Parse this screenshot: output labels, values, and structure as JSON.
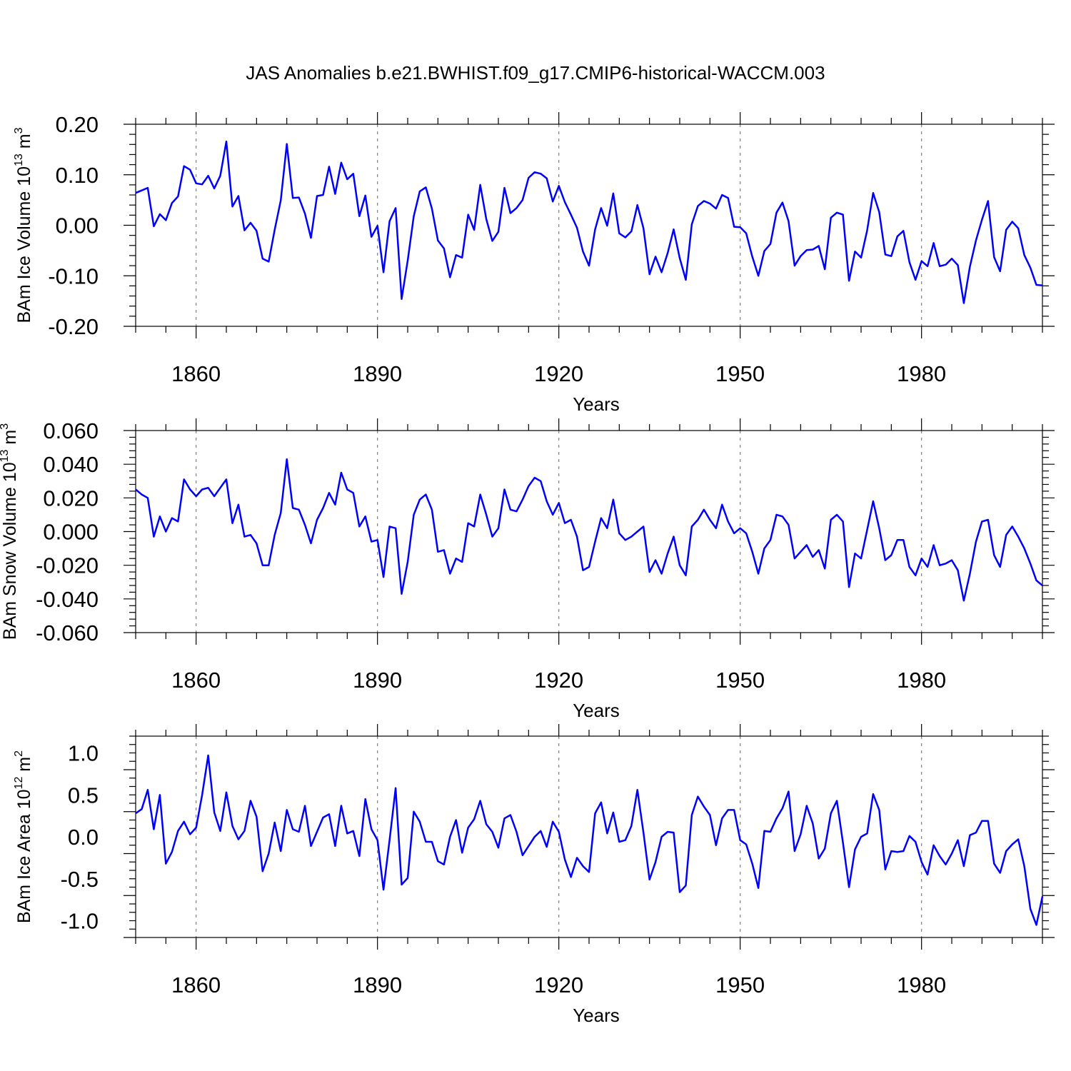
{
  "title": "JAS Anomalies b.e21.BWHIST.f09_g17.CMIP6-historical-WACCM.003",
  "chart_data": [
    {
      "type": "line",
      "xlabel": "Years",
      "ylabel": "BAm Ice Volume 10¹³ m³",
      "ylabel_parts": [
        "BAm Ice Volume 10",
        "13",
        " m",
        "3"
      ],
      "xlim": [
        1850,
        2000
      ],
      "ylim": [
        -0.2,
        0.2
      ],
      "xticks": [
        1860,
        1890,
        1920,
        1950,
        1980
      ],
      "yticks": [
        0.2,
        0.1,
        0.0,
        -0.1,
        -0.2
      ],
      "ytick_labels": [
        "0.20",
        "0.10",
        "0.00",
        "-0.10",
        "-0.20"
      ],
      "grid": "vertical dashed at major x ticks",
      "series": [
        {
          "color": "#0000ff",
          "x_start": 1850,
          "values": [
            0.064,
            0.069,
            0.074,
            -0.002,
            0.022,
            0.01,
            0.044,
            0.057,
            0.117,
            0.11,
            0.083,
            0.081,
            0.098,
            0.073,
            0.098,
            0.166,
            0.037,
            0.058,
            -0.01,
            0.005,
            -0.011,
            -0.066,
            -0.072,
            -0.009,
            0.049,
            0.161,
            0.054,
            0.055,
            0.023,
            -0.025,
            0.058,
            0.06,
            0.116,
            0.062,
            0.124,
            0.091,
            0.102,
            0.018,
            0.059,
            -0.023,
            -0.001,
            -0.093,
            0.008,
            0.034,
            -0.146,
            -0.07,
            0.018,
            0.067,
            0.075,
            0.033,
            -0.03,
            -0.046,
            -0.103,
            -0.059,
            -0.064,
            0.021,
            -0.009,
            0.08,
            0.012,
            -0.031,
            -0.013,
            0.074,
            0.024,
            0.034,
            0.05,
            0.094,
            0.105,
            0.102,
            0.093,
            0.047,
            0.078,
            0.046,
            0.021,
            -0.005,
            -0.052,
            -0.08,
            -0.008,
            0.034,
            -0.001,
            0.063,
            -0.016,
            -0.024,
            -0.012,
            0.04,
            -0.006,
            -0.097,
            -0.062,
            -0.093,
            -0.055,
            -0.008,
            -0.065,
            -0.108,
            0.002,
            0.038,
            0.048,
            0.043,
            0.033,
            0.06,
            0.054,
            -0.003,
            -0.004,
            -0.016,
            -0.062,
            -0.1,
            -0.051,
            -0.037,
            0.025,
            0.045,
            0.008,
            -0.08,
            -0.061,
            -0.049,
            -0.048,
            -0.041,
            -0.087,
            0.015,
            0.025,
            0.021,
            -0.11,
            -0.052,
            -0.064,
            -0.01,
            0.064,
            0.026,
            -0.058,
            -0.061,
            -0.022,
            -0.011,
            -0.073,
            -0.108,
            -0.071,
            -0.081,
            -0.035,
            -0.081,
            -0.078,
            -0.066,
            -0.079,
            -0.154,
            -0.082,
            -0.03,
            0.011,
            0.048,
            -0.063,
            -0.091,
            -0.009,
            0.007,
            -0.006,
            -0.059,
            -0.084,
            -0.118,
            -0.119
          ]
        }
      ]
    },
    {
      "type": "line",
      "xlabel": "Years",
      "ylabel": "BAm Snow Volume 10¹³ m³",
      "ylabel_parts": [
        "BAm Snow Volume 10",
        "13",
        " m",
        "3"
      ],
      "xlim": [
        1850,
        2000
      ],
      "ylim": [
        -0.06,
        0.06
      ],
      "xticks": [
        1860,
        1890,
        1920,
        1950,
        1980
      ],
      "yticks": [
        0.06,
        0.04,
        0.02,
        0.0,
        -0.02,
        -0.04,
        -0.06
      ],
      "ytick_labels": [
        "0.060",
        "0.040",
        "0.020",
        "0.000",
        "-0.020",
        "-0.040",
        "-0.060"
      ],
      "grid": "vertical dashed at major x ticks",
      "series": [
        {
          "color": "#0000ff",
          "x_start": 1850,
          "values": [
            0.025,
            0.022,
            0.02,
            -0.003,
            0.009,
            0.0,
            0.008,
            0.006,
            0.031,
            0.025,
            0.021,
            0.025,
            0.026,
            0.021,
            0.026,
            0.031,
            0.005,
            0.016,
            -0.003,
            -0.002,
            -0.007,
            -0.02,
            -0.02,
            -0.002,
            0.011,
            0.043,
            0.014,
            0.013,
            0.004,
            -0.007,
            0.007,
            0.014,
            0.023,
            0.016,
            0.035,
            0.025,
            0.023,
            0.003,
            0.009,
            -0.006,
            -0.005,
            -0.027,
            0.003,
            0.002,
            -0.037,
            -0.018,
            0.01,
            0.019,
            0.022,
            0.013,
            -0.012,
            -0.011,
            -0.025,
            -0.016,
            -0.018,
            0.005,
            0.003,
            0.022,
            0.01,
            -0.003,
            0.002,
            0.025,
            0.013,
            0.012,
            0.019,
            0.027,
            0.032,
            0.03,
            0.018,
            0.01,
            0.017,
            0.005,
            0.007,
            -0.003,
            -0.023,
            -0.021,
            -0.006,
            0.008,
            0.002,
            0.019,
            -0.001,
            -0.005,
            -0.003,
            0.0,
            0.003,
            -0.024,
            -0.017,
            -0.025,
            -0.013,
            -0.003,
            -0.02,
            -0.026,
            0.003,
            0.007,
            0.013,
            0.007,
            0.002,
            0.016,
            0.006,
            -0.001,
            0.002,
            -0.001,
            -0.012,
            -0.025,
            -0.01,
            -0.005,
            0.01,
            0.009,
            0.004,
            -0.016,
            -0.012,
            -0.008,
            -0.015,
            -0.011,
            -0.022,
            0.007,
            0.01,
            0.006,
            -0.033,
            -0.013,
            -0.016,
            0.001,
            0.018,
            0.002,
            -0.017,
            -0.014,
            -0.005,
            -0.005,
            -0.021,
            -0.026,
            -0.016,
            -0.021,
            -0.008,
            -0.02,
            -0.019,
            -0.017,
            -0.023,
            -0.041,
            -0.025,
            -0.006,
            0.006,
            0.007,
            -0.014,
            -0.021,
            -0.002,
            0.003,
            -0.003,
            -0.01,
            -0.019,
            -0.029,
            -0.032
          ]
        }
      ]
    },
    {
      "type": "line",
      "xlabel": "Years",
      "ylabel": "BAm Ice Area 10¹² m²",
      "ylabel_parts": [
        "BAm Ice Area 10",
        "12",
        " m",
        "2"
      ],
      "xlim": [
        1850,
        2000
      ],
      "ylim": [
        -1.2,
        1.2
      ],
      "xticks": [
        1860,
        1890,
        1920,
        1950,
        1980
      ],
      "yticks": [
        1.0,
        0.5,
        0.0,
        -0.5,
        -1.0
      ],
      "ytick_labels": [
        "1.0",
        "0.5",
        "0.0",
        "-0.5",
        "-1.0"
      ],
      "grid": "vertical dashed at major x ticks",
      "series": [
        {
          "color": "#0000ff",
          "x_start": 1850,
          "values": [
            0.28,
            0.33,
            0.56,
            0.09,
            0.5,
            -0.32,
            -0.18,
            0.07,
            0.18,
            0.03,
            0.11,
            0.5,
            0.97,
            0.29,
            0.07,
            0.53,
            0.13,
            -0.03,
            0.07,
            0.43,
            0.24,
            -0.41,
            -0.2,
            0.17,
            -0.17,
            0.32,
            0.09,
            0.06,
            0.37,
            -0.11,
            0.06,
            0.23,
            0.27,
            -0.11,
            0.37,
            0.04,
            0.07,
            -0.23,
            0.45,
            0.09,
            -0.04,
            -0.63,
            -0.04,
            0.58,
            -0.57,
            -0.49,
            0.3,
            0.18,
            -0.06,
            -0.06,
            -0.29,
            -0.33,
            0.0,
            0.2,
            -0.19,
            0.11,
            0.21,
            0.43,
            0.15,
            0.06,
            -0.13,
            0.22,
            0.26,
            0.06,
            -0.22,
            -0.11,
            0.0,
            0.07,
            -0.12,
            0.18,
            0.06,
            -0.27,
            -0.48,
            -0.25,
            -0.35,
            -0.42,
            0.28,
            0.41,
            0.04,
            0.29,
            -0.06,
            -0.04,
            0.13,
            0.56,
            0.05,
            -0.51,
            -0.3,
            0.0,
            0.06,
            0.05,
            -0.66,
            -0.58,
            0.26,
            0.48,
            0.36,
            0.26,
            -0.1,
            0.22,
            0.32,
            0.32,
            -0.04,
            -0.09,
            -0.32,
            -0.61,
            0.07,
            0.06,
            0.22,
            0.34,
            0.54,
            -0.17,
            0.03,
            0.37,
            0.16,
            -0.26,
            -0.14,
            0.28,
            0.43,
            -0.07,
            -0.6,
            -0.15,
            0.0,
            0.04,
            0.51,
            0.32,
            -0.39,
            -0.17,
            -0.18,
            -0.17,
            0.01,
            -0.06,
            -0.3,
            -0.45,
            -0.1,
            -0.23,
            -0.33,
            -0.2,
            -0.04,
            -0.35,
            0.02,
            0.05,
            0.19,
            0.19,
            -0.32,
            -0.43,
            -0.17,
            -0.09,
            -0.03,
            -0.35,
            -0.86,
            -1.05,
            -0.71
          ]
        }
      ]
    }
  ]
}
